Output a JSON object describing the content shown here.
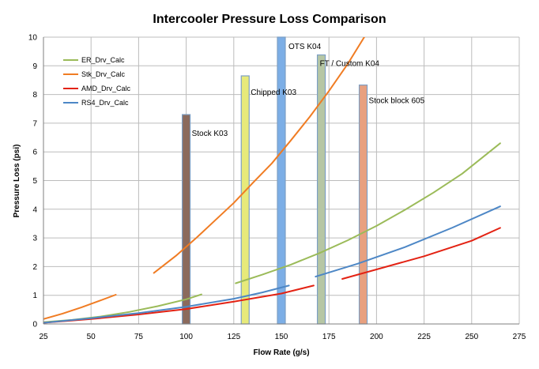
{
  "chart_data": {
    "type": "line",
    "title": "Intercooler Pressure Loss Comparison",
    "xlabel": "Flow Rate (g/s)",
    "ylabel": "Pressure Loss (psi)",
    "xlim": [
      25,
      275
    ],
    "ylim": [
      0,
      10
    ],
    "x_ticks": [
      25,
      50,
      75,
      100,
      125,
      150,
      175,
      200,
      225,
      250,
      275
    ],
    "y_ticks": [
      0,
      1,
      2,
      3,
      4,
      5,
      6,
      7,
      8,
      9,
      10
    ],
    "grid": true,
    "legend_position": "top-left",
    "series": [
      {
        "name": "ER_Drv_Calc",
        "color": "#9bbb59",
        "segments": [
          [
            [
              25,
              0.06
            ],
            [
              40,
              0.14
            ],
            [
              55,
              0.26
            ],
            [
              70,
              0.42
            ],
            [
              85,
              0.62
            ],
            [
              100,
              0.86
            ],
            [
              108,
              1.03
            ]
          ],
          [
            [
              126,
              1.42
            ],
            [
              140,
              1.72
            ],
            [
              155,
              2.07
            ],
            [
              170,
              2.47
            ],
            [
              185,
              2.92
            ],
            [
              200,
              3.42
            ],
            [
              215,
              3.98
            ],
            [
              230,
              4.58
            ],
            [
              245,
              5.24
            ],
            [
              265,
              6.3
            ]
          ]
        ]
      },
      {
        "name": "Stk_Drv_Calc",
        "color": "#f07c23",
        "segments": [
          [
            [
              25,
              0.17
            ],
            [
              35,
              0.36
            ],
            [
              45,
              0.58
            ],
            [
              55,
              0.82
            ],
            [
              63,
              1.02
            ]
          ],
          [
            [
              83,
              1.78
            ],
            [
              95,
              2.4
            ],
            [
              105,
              2.98
            ],
            [
              115,
              3.6
            ],
            [
              125,
              4.22
            ],
            [
              135,
              4.92
            ],
            [
              145,
              5.6
            ],
            [
              155,
              6.4
            ],
            [
              165,
              7.23
            ],
            [
              175,
              8.12
            ],
            [
              185,
              9.08
            ],
            [
              194,
              10.05
            ]
          ]
        ]
      },
      {
        "name": "AMD_Drv_Calc",
        "color": "#e32213",
        "segments": [
          [
            [
              25,
              0.04
            ],
            [
              50,
              0.17
            ],
            [
              75,
              0.33
            ],
            [
              100,
              0.52
            ],
            [
              125,
              0.78
            ],
            [
              150,
              1.06
            ],
            [
              167,
              1.34
            ]
          ],
          [
            [
              182,
              1.57
            ],
            [
              200,
              1.9
            ],
            [
              225,
              2.36
            ],
            [
              250,
              2.9
            ],
            [
              265,
              3.35
            ]
          ]
        ]
      },
      {
        "name": "RS4_Drv_Calc",
        "color": "#4d87c6",
        "segments": [
          [
            [
              25,
              0.04
            ],
            [
              50,
              0.2
            ],
            [
              75,
              0.38
            ],
            [
              100,
              0.6
            ],
            [
              125,
              0.88
            ],
            [
              140,
              1.1
            ],
            [
              154,
              1.34
            ]
          ],
          [
            [
              168,
              1.65
            ],
            [
              190,
              2.1
            ],
            [
              215,
              2.68
            ],
            [
              240,
              3.36
            ],
            [
              265,
              4.1
            ]
          ]
        ]
      }
    ],
    "bars": [
      {
        "label": "Stock K03",
        "x_center": 100,
        "value": 7.3,
        "color": "#8b6a5c"
      },
      {
        "label": "Chipped K03",
        "x_center": 131,
        "value": 8.65,
        "color": "#e7ea7a"
      },
      {
        "label": "OTS K04",
        "x_center": 150,
        "value": 10,
        "color": "#7caee6"
      },
      {
        "label": "FT / Custom K04",
        "x_center": 171,
        "value": 9.38,
        "color": "#b6c6a4"
      },
      {
        "label": "Stock block 605",
        "x_center": 193,
        "value": 8.33,
        "color": "#e8a07f"
      }
    ]
  }
}
